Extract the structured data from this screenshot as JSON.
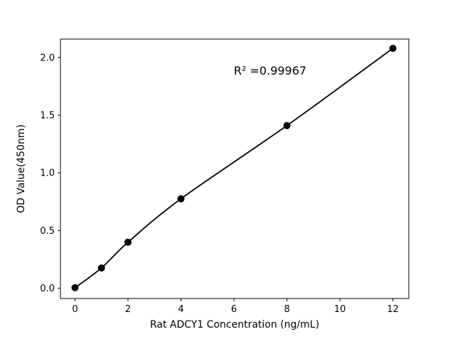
{
  "chart_data": {
    "type": "scatter",
    "title": "",
    "xlabel": "Rat ADCY1 Concentration (ng/mL)",
    "ylabel": "OD Value(450nm)",
    "annotation": "R² =0.99967",
    "x": [
      0,
      1,
      2,
      4,
      8,
      12
    ],
    "y": [
      0.004,
      0.175,
      0.398,
      0.775,
      1.41,
      2.08
    ],
    "fit_line": "smooth curve through points",
    "xlim": [
      -0.55,
      12.6
    ],
    "ylim": [
      -0.09,
      2.16
    ],
    "xticks": [
      0,
      2,
      4,
      6,
      8,
      10,
      12
    ],
    "xtick_labels": [
      "0",
      "2",
      "4",
      "6",
      "8",
      "10",
      "12"
    ],
    "yticks": [
      0.0,
      0.5,
      1.0,
      1.5,
      2.0
    ],
    "ytick_labels": [
      "0.0",
      "0.5",
      "1.0",
      "1.5",
      "2.0"
    ],
    "legend": null,
    "grid": false,
    "marker_color": "#000000",
    "line_color": "#000000",
    "background_color": "#ffffff"
  }
}
